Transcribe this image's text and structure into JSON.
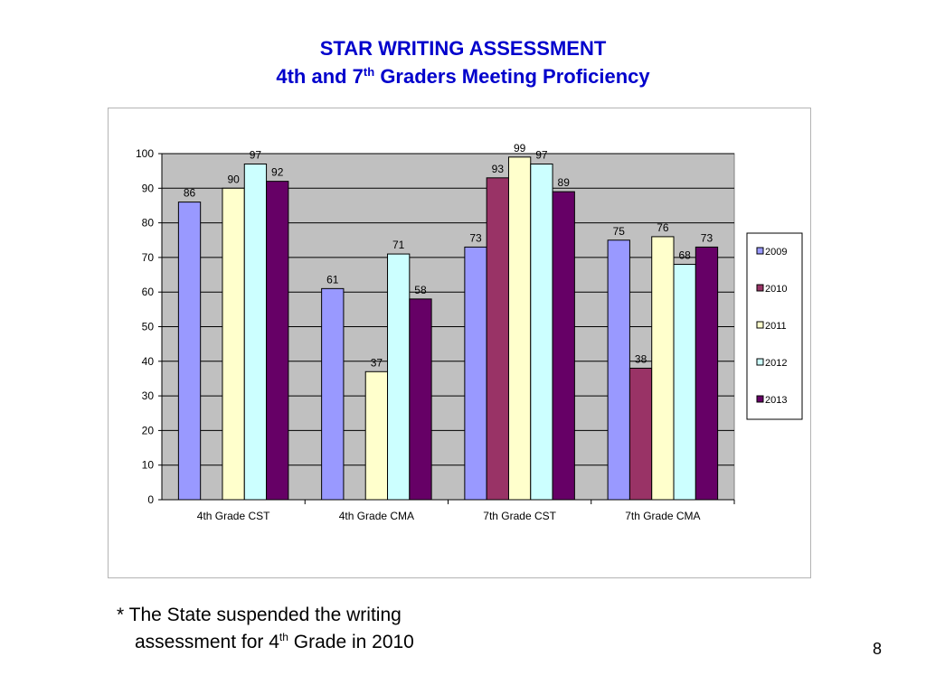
{
  "slide": {
    "title_line1": "STAR WRITING ASSESSMENT",
    "title_line2_a": "4th and 7",
    "title_line2_sup": "th",
    "title_line2_b": " Graders Meeting Proficiency",
    "footnote_line1": "* The State suspended the writing",
    "footnote_line2_a": "assessment for 4",
    "footnote_line2_sup": "th",
    "footnote_line2_b": " Grade in 2010",
    "slide_number": "8"
  },
  "colors": {
    "title": "#0000cc",
    "plot_background": "#c0c0c0",
    "series_2009": "#9999ff",
    "series_2010": "#993366",
    "series_2011": "#ffffcc",
    "series_2012": "#ccffff",
    "series_2013": "#660066"
  },
  "chart_data": {
    "type": "bar",
    "categories": [
      "4th Grade CST",
      "4th Grade CMA",
      "7th Grade CST",
      "7th Grade CMA"
    ],
    "series": [
      {
        "name": "2009",
        "values": [
          86,
          61,
          73,
          75
        ]
      },
      {
        "name": "2010",
        "values": [
          null,
          null,
          93,
          38
        ]
      },
      {
        "name": "2011",
        "values": [
          90,
          37,
          99,
          76
        ]
      },
      {
        "name": "2012",
        "values": [
          97,
          71,
          97,
          68
        ]
      },
      {
        "name": "2013",
        "values": [
          92,
          58,
          89,
          73
        ]
      }
    ],
    "ylim": [
      0,
      100
    ],
    "yticks": [
      0,
      10,
      20,
      30,
      40,
      50,
      60,
      70,
      80,
      90,
      100
    ],
    "grid": true,
    "legend": "right",
    "data_labels": true
  }
}
